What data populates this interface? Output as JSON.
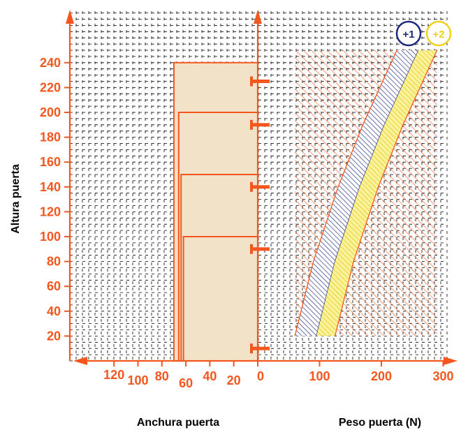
{
  "colors": {
    "accent": "#f5561e",
    "width_fill": "#f1e2c8",
    "grid": "#000000",
    "band_plus1": "#1d2a7c",
    "band_plus2": "#f0d21b",
    "band_plus2_fill": "#fbf39a"
  },
  "chart_data": [
    {
      "type": "area",
      "xlabel": "Anchura puerta",
      "ylabel": "Altura puerta",
      "x_ticks": [
        120,
        100,
        80,
        60,
        40,
        20,
        0
      ],
      "y_ticks": [
        20,
        40,
        60,
        80,
        100,
        120,
        140,
        160,
        180,
        200,
        220,
        240
      ],
      "ylim": [
        0,
        270
      ],
      "grid": "dashed",
      "door_widths": [
        {
          "width": 70,
          "height": 240
        },
        {
          "width": 66,
          "height": 200
        },
        {
          "width": 64,
          "height": 150
        },
        {
          "width": 62,
          "height": 100
        }
      ],
      "hinge_heights": [
        225,
        190,
        140,
        90,
        10
      ]
    },
    {
      "type": "area",
      "xlabel": "Peso puerta (N)",
      "x_ticks": [
        0,
        100,
        200,
        300
      ],
      "xlim": [
        0,
        300
      ],
      "hatched_region": {
        "x": [
          60,
          290
        ],
        "y": [
          20,
          250
        ]
      },
      "series": [
        {
          "name": "+1",
          "lower": [
            [
              60,
              20
            ],
            [
              90,
              80
            ],
            [
              130,
              140
            ],
            [
              170,
              190
            ],
            [
              225,
              250
            ]
          ],
          "upper": [
            [
              95,
              20
            ],
            [
              125,
              80
            ],
            [
              165,
              140
            ],
            [
              205,
              190
            ],
            [
              260,
              250
            ]
          ]
        },
        {
          "name": "+2",
          "lower": [
            [
              95,
              20
            ],
            [
              125,
              80
            ],
            [
              165,
              140
            ],
            [
              205,
              190
            ],
            [
              260,
              250
            ]
          ],
          "upper": [
            [
              125,
              20
            ],
            [
              155,
              80
            ],
            [
              195,
              140
            ],
            [
              235,
              190
            ],
            [
              290,
              250
            ]
          ]
        }
      ]
    }
  ]
}
